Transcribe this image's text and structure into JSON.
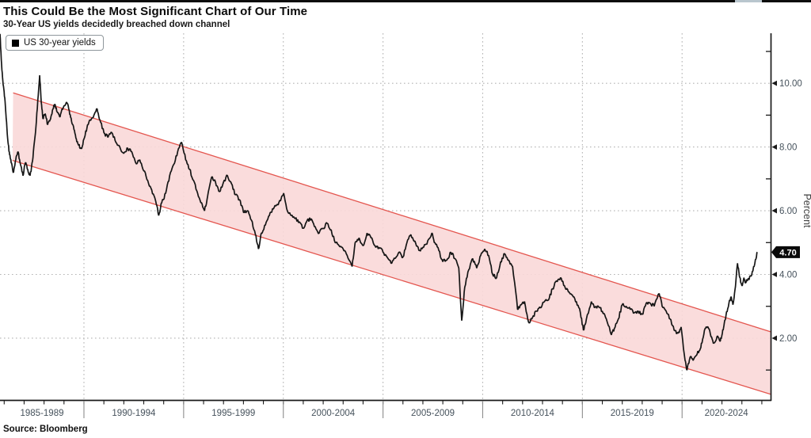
{
  "header": {
    "title": "This Could Be the Most Significant Chart of Our Time",
    "subtitle": "30-Year US yields decidedly breached down channel"
  },
  "legend": {
    "label": "US 30-year yields",
    "swatch_color": "#000000"
  },
  "source": "Source: Bloomberg",
  "colors": {
    "series_line": "#161616",
    "channel_fill": "#f9d8d8",
    "channel_stroke": "#e4564f",
    "grid": "#b3b3b3",
    "axis": "#1a1a1a",
    "tick_label": "#46525c",
    "axis_title": "#3f3f3f",
    "badge_bg": "#0a0a0a",
    "badge_text": "#ffffff"
  },
  "chart_data": {
    "type": "line",
    "title": "This Could Be the Most Significant Chart of Our Time",
    "subtitle": "30-Year US yields decidedly breached down channel",
    "ylabel": "Percent",
    "grid": "dotted",
    "legend_position": "top-left",
    "last_value": 4.7,
    "last_value_label": "4.70",
    "x_axis": {
      "min": 1985.79,
      "max": 2024.44,
      "separators": [
        1990,
        1995,
        2000,
        2005,
        2010,
        2015,
        2020
      ],
      "minor_tick_step": 1,
      "bin_labels": [
        "1985-1989",
        "1990-1994",
        "1995-1999",
        "2000-2004",
        "2005-2009",
        "2010-2014",
        "2015-2019",
        "2020-2024"
      ]
    },
    "y_axis": {
      "min": 0.06,
      "max": 11.57,
      "side": "right",
      "title": "Percent",
      "major_ticks": [
        {
          "value": 2,
          "label": "2.00"
        },
        {
          "value": 4,
          "label": "4.00"
        },
        {
          "value": 6,
          "label": "6.00"
        },
        {
          "value": 8,
          "label": "8.00"
        },
        {
          "value": 10,
          "label": "10.00"
        }
      ],
      "minor_ticks": [
        1,
        3,
        5,
        7,
        9,
        11
      ]
    },
    "channel": {
      "name": "down channel",
      "upper": [
        [
          1986.45,
          9.7
        ],
        [
          2024.44,
          2.2
        ]
      ],
      "lower": [
        [
          1986.42,
          7.58
        ],
        [
          2024.44,
          0.24
        ]
      ]
    },
    "series": [
      {
        "name": "US 30-year yields",
        "color": "#161616",
        "points": [
          [
            1985.79,
            11.55
          ],
          [
            1985.87,
            10.6
          ],
          [
            1985.95,
            9.95
          ],
          [
            1986.03,
            9.55
          ],
          [
            1986.1,
            8.9
          ],
          [
            1986.19,
            8.15
          ],
          [
            1986.27,
            7.75
          ],
          [
            1986.35,
            7.5
          ],
          [
            1986.47,
            7.2
          ],
          [
            1986.58,
            7.6
          ],
          [
            1986.7,
            7.85
          ],
          [
            1986.82,
            7.45
          ],
          [
            1986.94,
            7.1
          ],
          [
            1987.06,
            7.5
          ],
          [
            1987.18,
            7.3
          ],
          [
            1987.3,
            7.1
          ],
          [
            1987.42,
            7.55
          ],
          [
            1987.54,
            8.3
          ],
          [
            1987.66,
            9.2
          ],
          [
            1987.78,
            10.25
          ],
          [
            1987.86,
            9.4
          ],
          [
            1987.94,
            8.9
          ],
          [
            1988.06,
            9.05
          ],
          [
            1988.18,
            8.7
          ],
          [
            1988.3,
            8.85
          ],
          [
            1988.42,
            9.15
          ],
          [
            1988.54,
            9.35
          ],
          [
            1988.66,
            9.1
          ],
          [
            1988.78,
            8.95
          ],
          [
            1988.9,
            9.2
          ],
          [
            1989.02,
            9.3
          ],
          [
            1989.14,
            9.4
          ],
          [
            1989.26,
            9.15
          ],
          [
            1989.38,
            8.8
          ],
          [
            1989.5,
            8.55
          ],
          [
            1989.62,
            8.25
          ],
          [
            1989.74,
            8.05
          ],
          [
            1989.86,
            7.95
          ],
          [
            1990.0,
            8.25
          ],
          [
            1990.15,
            8.6
          ],
          [
            1990.3,
            8.85
          ],
          [
            1990.5,
            9.0
          ],
          [
            1990.66,
            9.2
          ],
          [
            1990.8,
            8.85
          ],
          [
            1991.0,
            8.45
          ],
          [
            1991.2,
            8.3
          ],
          [
            1991.4,
            8.45
          ],
          [
            1991.6,
            8.15
          ],
          [
            1991.8,
            8.0
          ],
          [
            1992.0,
            7.8
          ],
          [
            1992.2,
            7.95
          ],
          [
            1992.4,
            7.85
          ],
          [
            1992.6,
            7.5
          ],
          [
            1992.8,
            7.6
          ],
          [
            1993.0,
            7.25
          ],
          [
            1993.2,
            6.95
          ],
          [
            1993.4,
            6.65
          ],
          [
            1993.6,
            6.3
          ],
          [
            1993.75,
            5.85
          ],
          [
            1993.9,
            6.25
          ],
          [
            1994.1,
            6.55
          ],
          [
            1994.3,
            7.1
          ],
          [
            1994.5,
            7.45
          ],
          [
            1994.7,
            7.85
          ],
          [
            1994.9,
            8.15
          ],
          [
            1995.1,
            7.6
          ],
          [
            1995.3,
            7.3
          ],
          [
            1995.5,
            6.95
          ],
          [
            1995.7,
            6.55
          ],
          [
            1995.9,
            6.25
          ],
          [
            1996.05,
            6.0
          ],
          [
            1996.2,
            6.45
          ],
          [
            1996.4,
            7.05
          ],
          [
            1996.6,
            6.9
          ],
          [
            1996.8,
            6.6
          ],
          [
            1997.0,
            6.9
          ],
          [
            1997.2,
            7.1
          ],
          [
            1997.4,
            6.85
          ],
          [
            1997.6,
            6.5
          ],
          [
            1997.8,
            6.35
          ],
          [
            1998.0,
            5.95
          ],
          [
            1998.2,
            6.0
          ],
          [
            1998.4,
            5.7
          ],
          [
            1998.6,
            5.25
          ],
          [
            1998.75,
            4.8
          ],
          [
            1998.9,
            5.3
          ],
          [
            1999.1,
            5.55
          ],
          [
            1999.3,
            5.85
          ],
          [
            1999.5,
            6.05
          ],
          [
            1999.7,
            6.2
          ],
          [
            1999.9,
            6.4
          ],
          [
            2000.02,
            6.55
          ],
          [
            2000.2,
            6.0
          ],
          [
            2000.4,
            5.85
          ],
          [
            2000.6,
            5.75
          ],
          [
            2000.8,
            5.65
          ],
          [
            2001.0,
            5.45
          ],
          [
            2001.2,
            5.7
          ],
          [
            2001.4,
            5.75
          ],
          [
            2001.6,
            5.5
          ],
          [
            2001.8,
            5.3
          ],
          [
            2002.0,
            5.45
          ],
          [
            2002.2,
            5.6
          ],
          [
            2002.4,
            5.4
          ],
          [
            2002.6,
            5.0
          ],
          [
            2002.8,
            4.9
          ],
          [
            2003.0,
            4.8
          ],
          [
            2003.2,
            4.6
          ],
          [
            2003.45,
            4.25
          ],
          [
            2003.6,
            5.0
          ],
          [
            2003.8,
            5.15
          ],
          [
            2004.0,
            4.9
          ],
          [
            2004.2,
            5.3
          ],
          [
            2004.4,
            5.15
          ],
          [
            2004.6,
            4.9
          ],
          [
            2004.8,
            4.85
          ],
          [
            2005.0,
            4.7
          ],
          [
            2005.2,
            4.55
          ],
          [
            2005.4,
            4.35
          ],
          [
            2005.6,
            4.5
          ],
          [
            2005.8,
            4.7
          ],
          [
            2006.0,
            4.55
          ],
          [
            2006.2,
            5.0
          ],
          [
            2006.4,
            5.25
          ],
          [
            2006.6,
            5.05
          ],
          [
            2006.8,
            4.75
          ],
          [
            2007.0,
            4.85
          ],
          [
            2007.2,
            4.95
          ],
          [
            2007.45,
            5.3
          ],
          [
            2007.6,
            5.0
          ],
          [
            2007.8,
            4.75
          ],
          [
            2008.0,
            4.4
          ],
          [
            2008.2,
            4.45
          ],
          [
            2008.4,
            4.7
          ],
          [
            2008.6,
            4.5
          ],
          [
            2008.8,
            4.2
          ],
          [
            2008.95,
            2.55
          ],
          [
            2009.1,
            3.6
          ],
          [
            2009.3,
            4.15
          ],
          [
            2009.5,
            4.5
          ],
          [
            2009.7,
            4.2
          ],
          [
            2009.9,
            4.6
          ],
          [
            2010.1,
            4.8
          ],
          [
            2010.3,
            4.6
          ],
          [
            2010.5,
            4.0
          ],
          [
            2010.7,
            3.9
          ],
          [
            2010.9,
            4.4
          ],
          [
            2011.1,
            4.65
          ],
          [
            2011.3,
            4.45
          ],
          [
            2011.5,
            4.25
          ],
          [
            2011.75,
            2.9
          ],
          [
            2011.9,
            3.05
          ],
          [
            2012.1,
            3.15
          ],
          [
            2012.3,
            2.5
          ],
          [
            2012.5,
            2.65
          ],
          [
            2012.7,
            2.85
          ],
          [
            2012.9,
            2.95
          ],
          [
            2013.1,
            3.15
          ],
          [
            2013.3,
            3.2
          ],
          [
            2013.5,
            3.55
          ],
          [
            2013.7,
            3.8
          ],
          [
            2013.9,
            3.9
          ],
          [
            2014.1,
            3.65
          ],
          [
            2014.3,
            3.45
          ],
          [
            2014.5,
            3.35
          ],
          [
            2014.7,
            3.15
          ],
          [
            2014.9,
            2.8
          ],
          [
            2015.05,
            2.25
          ],
          [
            2015.2,
            2.6
          ],
          [
            2015.45,
            3.15
          ],
          [
            2015.6,
            2.95
          ],
          [
            2015.8,
            3.0
          ],
          [
            2016.0,
            2.85
          ],
          [
            2016.2,
            2.6
          ],
          [
            2016.45,
            2.1
          ],
          [
            2016.6,
            2.3
          ],
          [
            2016.8,
            2.6
          ],
          [
            2017.0,
            3.05
          ],
          [
            2017.2,
            3.0
          ],
          [
            2017.4,
            2.9
          ],
          [
            2017.6,
            2.8
          ],
          [
            2017.8,
            2.85
          ],
          [
            2018.0,
            2.75
          ],
          [
            2018.2,
            3.1
          ],
          [
            2018.4,
            3.1
          ],
          [
            2018.6,
            3.0
          ],
          [
            2018.85,
            3.4
          ],
          [
            2019.0,
            3.0
          ],
          [
            2019.2,
            2.85
          ],
          [
            2019.4,
            2.6
          ],
          [
            2019.6,
            2.25
          ],
          [
            2019.8,
            2.15
          ],
          [
            2019.95,
            2.35
          ],
          [
            2020.15,
            1.3
          ],
          [
            2020.25,
            1.0
          ],
          [
            2020.4,
            1.4
          ],
          [
            2020.55,
            1.3
          ],
          [
            2020.7,
            1.45
          ],
          [
            2020.85,
            1.6
          ],
          [
            2021.0,
            1.85
          ],
          [
            2021.15,
            2.3
          ],
          [
            2021.3,
            2.35
          ],
          [
            2021.45,
            2.05
          ],
          [
            2021.6,
            1.85
          ],
          [
            2021.75,
            2.05
          ],
          [
            2021.9,
            1.9
          ],
          [
            2022.0,
            2.1
          ],
          [
            2022.1,
            2.4
          ],
          [
            2022.2,
            2.7
          ],
          [
            2022.35,
            3.1
          ],
          [
            2022.45,
            3.3
          ],
          [
            2022.55,
            3.05
          ],
          [
            2022.65,
            3.5
          ],
          [
            2022.78,
            4.35
          ],
          [
            2022.9,
            3.9
          ],
          [
            2023.0,
            3.65
          ],
          [
            2023.1,
            3.9
          ],
          [
            2023.2,
            3.75
          ],
          [
            2023.3,
            3.85
          ],
          [
            2023.45,
            3.95
          ],
          [
            2023.55,
            4.1
          ],
          [
            2023.65,
            4.35
          ],
          [
            2023.78,
            4.7
          ]
        ]
      }
    ]
  }
}
